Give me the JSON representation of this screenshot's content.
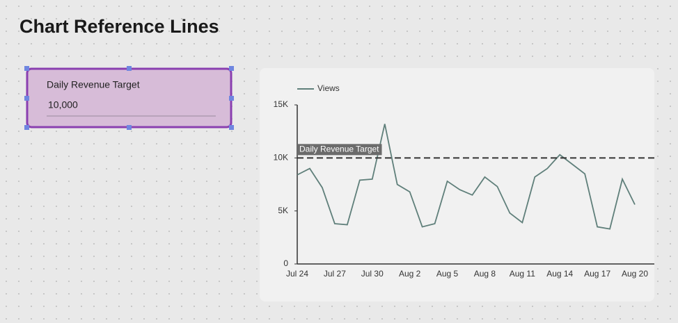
{
  "page": {
    "title": "Chart Reference Lines"
  },
  "control": {
    "label": "Daily Revenue Target",
    "value": "10,000"
  },
  "chart_data": {
    "type": "line",
    "categories": [
      "Jul 24",
      null,
      null,
      "Jul 27",
      null,
      null,
      "Jul 30",
      null,
      null,
      "Aug 2",
      null,
      null,
      "Aug 5",
      null,
      null,
      "Aug 8",
      null,
      null,
      "Aug 11",
      null,
      null,
      "Aug 14",
      null,
      null,
      "Aug 17",
      null,
      null,
      "Aug 20"
    ],
    "series": [
      {
        "name": "Views",
        "color": "#5f7f7a",
        "values": [
          8400,
          9000,
          7200,
          3800,
          3700,
          7900,
          8000,
          13200,
          7500,
          6800,
          3500,
          3800,
          7800,
          7000,
          6500,
          8200,
          7300,
          4800,
          3900,
          8200,
          9000,
          10300,
          9400,
          8500,
          3500,
          3300,
          8000,
          5600
        ]
      }
    ],
    "ylim": [
      0,
      15000
    ],
    "yticks": [
      0,
      {
        "value": 5000,
        "label": "5K"
      },
      {
        "value": 10000,
        "label": "10K"
      },
      {
        "value": 15000,
        "label": "15K"
      }
    ],
    "reference_line": {
      "label": "Daily Revenue Target",
      "value": 10000,
      "color": "#333333"
    },
    "legend": "top-left"
  }
}
